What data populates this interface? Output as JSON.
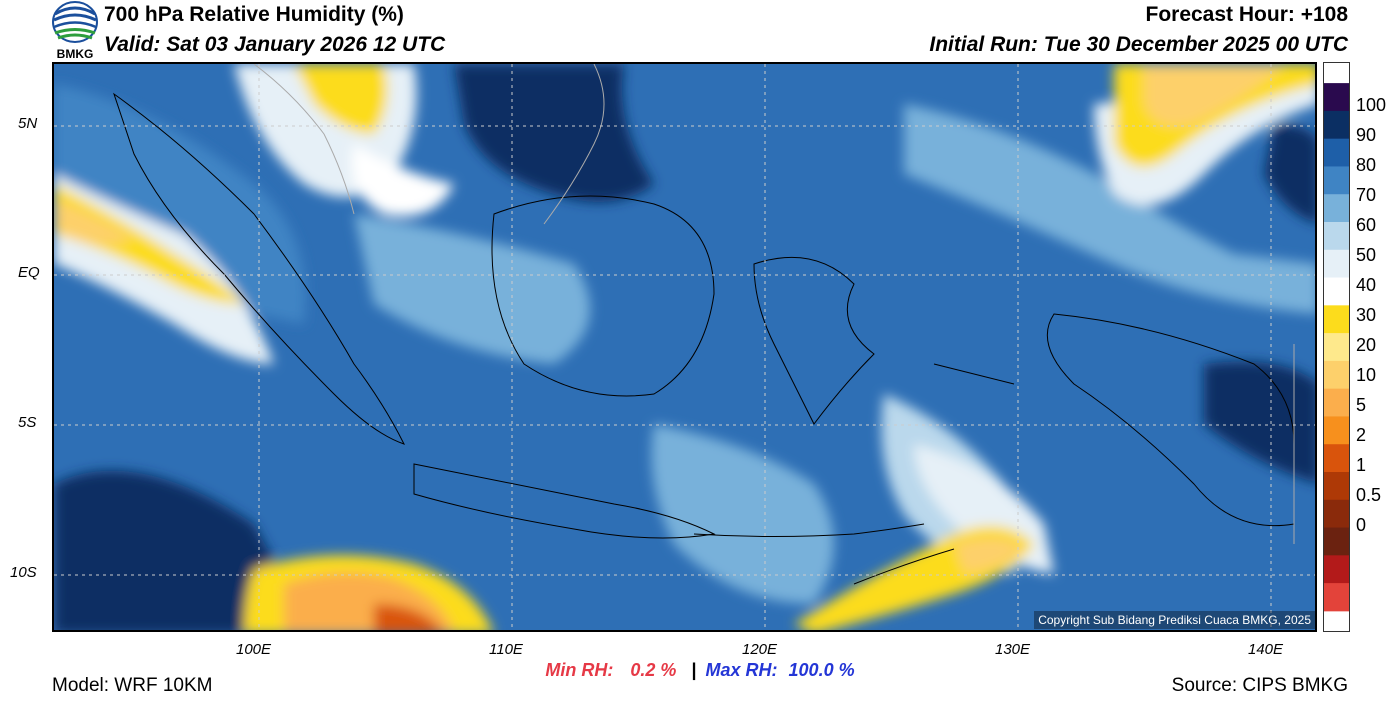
{
  "header": {
    "title": "700 hPa Relative Humidity (%)",
    "valid": "Valid: Sat 03 January 2026 12 UTC",
    "forecast_hour": "Forecast Hour: +108",
    "initial_run": "Initial Run: Tue 30 December 2025 00 UTC",
    "logo_text": "BMKG"
  },
  "map": {
    "lat_ticks": [
      "5N",
      "EQ",
      "5S",
      "10S"
    ],
    "lon_ticks": [
      "100E",
      "110E",
      "120E",
      "130E",
      "140E"
    ],
    "extent": {
      "lon": [
        92,
        142
      ],
      "lat": [
        -12,
        7
      ]
    },
    "gridlines": true,
    "copyright": "Copyright Sub Bidang Prediksi Cuaca BMKG, 2025"
  },
  "legend": {
    "labels": [
      "100",
      "90",
      "80",
      "70",
      "60",
      "50",
      "40",
      "30",
      "20",
      "10",
      "5",
      "2",
      "1",
      "0.5",
      "0"
    ],
    "colors": [
      "#2a0a4e",
      "#0b2f63",
      "#1e5fa8",
      "#3f84c4",
      "#78b1da",
      "#bad8ec",
      "#e6f0f7",
      "#ffffff",
      "#fcdc1c",
      "#fee98c",
      "#fdd06b",
      "#fbae4c",
      "#f7901d",
      "#d9540c",
      "#ae3906",
      "#8a2a0b",
      "#6b2210",
      "#b31a1a",
      "#e3433a"
    ]
  },
  "stats": {
    "min_label": "Min RH:",
    "min_value": "0.2 %",
    "separator": "|",
    "max_label": "Max RH:",
    "max_value": "100.0 %",
    "min_color": "#e63946",
    "max_color": "#2436d6"
  },
  "footer": {
    "model": "Model: WRF 10KM",
    "source": "Source: CIPS BMKG"
  }
}
